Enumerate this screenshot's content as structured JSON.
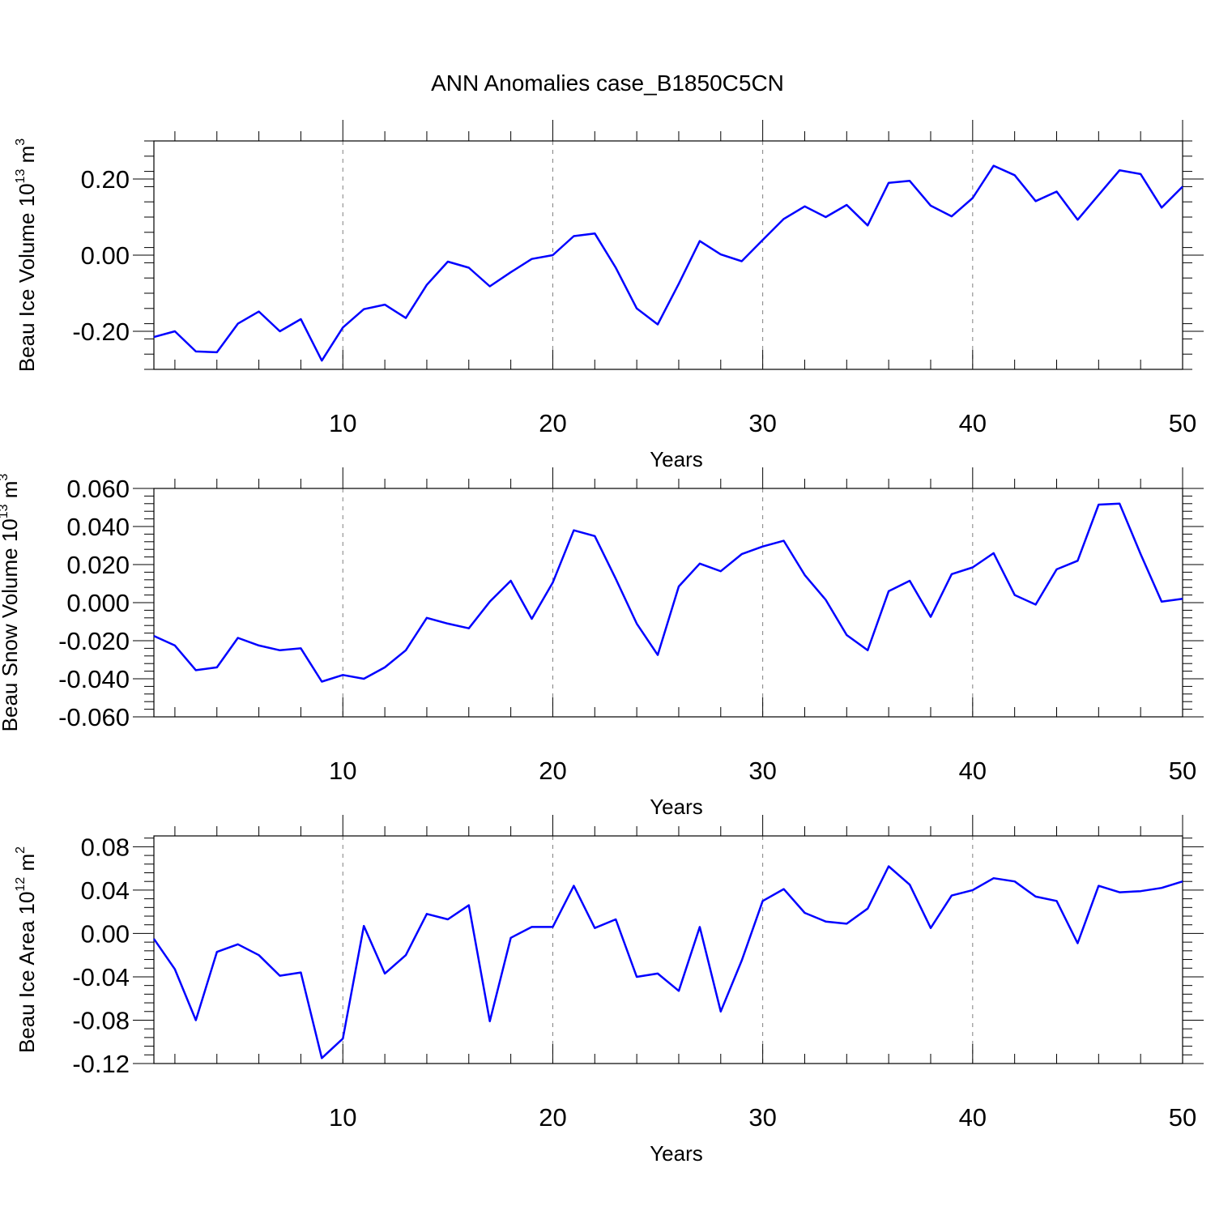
{
  "title": "ANN Anomalies case_B1850C5CN",
  "colors": {
    "line": "#0000ff",
    "frame": "#000000",
    "grid": "#808080"
  },
  "chart_data": [
    {
      "type": "line",
      "ylabel": {
        "base": "Beau Ice Volume 10",
        "exp": "13",
        "unit": " m",
        "unit_exp": "3"
      },
      "xlabel": "Years",
      "xlim": [
        1,
        50
      ],
      "ylim": [
        -0.3,
        0.3
      ],
      "xticks": [
        10,
        20,
        30,
        40,
        50
      ],
      "yticks": [
        -0.2,
        0.0,
        0.2
      ],
      "ytick_labels": [
        "-0.20",
        "0.00",
        "0.20"
      ],
      "grid": "vertical dashed at major x ticks",
      "x": [
        1,
        2,
        3,
        4,
        5,
        6,
        7,
        8,
        9,
        10,
        11,
        12,
        13,
        14,
        15,
        16,
        17,
        18,
        19,
        20,
        21,
        22,
        23,
        24,
        25,
        26,
        27,
        28,
        29,
        30,
        31,
        32,
        33,
        34,
        35,
        36,
        37,
        38,
        39,
        40,
        41,
        42,
        43,
        44,
        45,
        46,
        47,
        48,
        49,
        50
      ],
      "values": [
        -0.215,
        -0.2,
        -0.253,
        -0.255,
        -0.18,
        -0.148,
        -0.2,
        -0.168,
        -0.277,
        -0.19,
        -0.142,
        -0.13,
        -0.165,
        -0.078,
        -0.017,
        -0.033,
        -0.082,
        -0.045,
        -0.01,
        0.0,
        0.05,
        0.057,
        -0.033,
        -0.14,
        -0.182,
        -0.075,
        0.037,
        0.002,
        -0.016,
        0.04,
        0.095,
        0.128,
        0.1,
        0.132,
        0.078,
        0.19,
        0.195,
        0.13,
        0.102,
        0.15,
        0.235,
        0.21,
        0.142,
        0.167,
        0.093,
        0.158,
        0.223,
        0.213,
        0.125,
        0.18
      ]
    },
    {
      "type": "line",
      "ylabel": {
        "base": "Beau Snow Volume 10",
        "exp": "13",
        "unit": " m",
        "unit_exp": "3"
      },
      "xlabel": "Years",
      "xlim": [
        1,
        50
      ],
      "ylim": [
        -0.06,
        0.06
      ],
      "xticks": [
        10,
        20,
        30,
        40,
        50
      ],
      "yticks": [
        -0.06,
        -0.04,
        -0.02,
        0.0,
        0.02,
        0.04,
        0.06
      ],
      "ytick_labels": [
        "-0.060",
        "-0.040",
        "-0.020",
        "0.000",
        "0.020",
        "0.040",
        "0.060"
      ],
      "grid": "vertical dashed at major x ticks",
      "x": [
        1,
        2,
        3,
        4,
        5,
        6,
        7,
        8,
        9,
        10,
        11,
        12,
        13,
        14,
        15,
        16,
        17,
        18,
        19,
        20,
        21,
        22,
        23,
        24,
        25,
        26,
        27,
        28,
        29,
        30,
        31,
        32,
        33,
        34,
        35,
        36,
        37,
        38,
        39,
        40,
        41,
        42,
        43,
        44,
        45,
        46,
        47,
        48,
        49,
        50
      ],
      "values": [
        -0.0175,
        -0.0225,
        -0.0355,
        -0.034,
        -0.0185,
        -0.0225,
        -0.025,
        -0.024,
        -0.0415,
        -0.038,
        -0.04,
        -0.034,
        -0.025,
        -0.008,
        -0.011,
        -0.0135,
        0.0005,
        0.0115,
        -0.0085,
        0.0105,
        0.038,
        0.035,
        0.0125,
        -0.011,
        -0.0275,
        0.0085,
        0.0205,
        0.0165,
        0.0255,
        0.0295,
        0.0325,
        0.0145,
        0.0015,
        -0.017,
        -0.025,
        0.006,
        0.0115,
        -0.0075,
        0.015,
        0.0185,
        0.026,
        0.004,
        -0.001,
        0.0175,
        0.022,
        0.0515,
        0.052,
        0.0255,
        0.0005,
        0.002
      ]
    },
    {
      "type": "line",
      "ylabel": {
        "base": "Beau Ice Area 10",
        "exp": "12",
        "unit": " m",
        "unit_exp": "2"
      },
      "xlabel": "Years",
      "xlim": [
        1,
        50
      ],
      "ylim": [
        -0.12,
        0.09
      ],
      "xticks": [
        10,
        20,
        30,
        40,
        50
      ],
      "yticks": [
        -0.12,
        -0.08,
        -0.04,
        0.0,
        0.04,
        0.08
      ],
      "ytick_labels": [
        "-0.12",
        "-0.08",
        "-0.04",
        "0.00",
        "0.04",
        "0.08"
      ],
      "grid": "vertical dashed at major x ticks",
      "x": [
        1,
        2,
        3,
        4,
        5,
        6,
        7,
        8,
        9,
        10,
        11,
        12,
        13,
        14,
        15,
        16,
        17,
        18,
        19,
        20,
        21,
        22,
        23,
        24,
        25,
        26,
        27,
        28,
        29,
        30,
        31,
        32,
        33,
        34,
        35,
        36,
        37,
        38,
        39,
        40,
        41,
        42,
        43,
        44,
        45,
        46,
        47,
        48,
        49,
        50
      ],
      "values": [
        -0.005,
        -0.033,
        -0.08,
        -0.017,
        -0.01,
        -0.02,
        -0.039,
        -0.036,
        -0.115,
        -0.097,
        0.007,
        -0.037,
        -0.02,
        0.018,
        0.013,
        0.026,
        -0.081,
        -0.004,
        0.006,
        0.006,
        0.044,
        0.005,
        0.013,
        -0.04,
        -0.037,
        -0.053,
        0.006,
        -0.072,
        -0.025,
        0.03,
        0.041,
        0.019,
        0.011,
        0.009,
        0.023,
        0.062,
        0.045,
        0.005,
        0.035,
        0.04,
        0.051,
        0.048,
        0.034,
        0.03,
        -0.009,
        0.044,
        0.038,
        0.039,
        0.042,
        0.048
      ]
    }
  ]
}
